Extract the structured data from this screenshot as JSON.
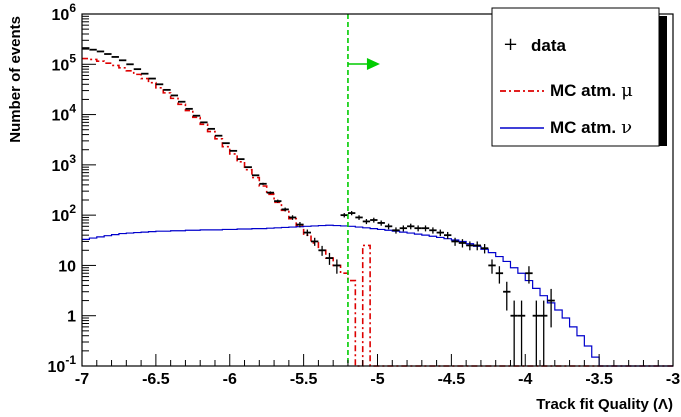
{
  "chart_data": {
    "type": "line",
    "xlabel": "Track fit Quality (Λ)",
    "ylabel": "Number of events",
    "xlim": [
      -7,
      -3
    ],
    "ylim": [
      0.1,
      1000000
    ],
    "y_scale": "log",
    "grid": false,
    "legend_position": "top-right",
    "x_ticks": [
      {
        "value": -7,
        "label": "-7"
      },
      {
        "value": -6.5,
        "label": "-6.5"
      },
      {
        "value": -6,
        "label": "-6"
      },
      {
        "value": -5.5,
        "label": "-5.5"
      },
      {
        "value": -5,
        "label": "-5"
      },
      {
        "value": -4.5,
        "label": "-4.5"
      },
      {
        "value": -4,
        "label": "-4"
      },
      {
        "value": -3.5,
        "label": "-3.5"
      },
      {
        "value": -3,
        "label": "-3"
      }
    ],
    "y_ticks": [
      {
        "value": 0.1,
        "base": "10",
        "exp": "-1"
      },
      {
        "value": 1,
        "label": "1"
      },
      {
        "value": 10,
        "label": "10"
      },
      {
        "value": 100,
        "base": "10",
        "exp": "2"
      },
      {
        "value": 1000,
        "base": "10",
        "exp": "3"
      },
      {
        "value": 10000,
        "base": "10",
        "exp": "4"
      },
      {
        "value": 100000,
        "base": "10",
        "exp": "5"
      },
      {
        "value": 1000000,
        "base": "10",
        "exp": "6"
      }
    ],
    "cut_line": {
      "x": -5.2,
      "color": "#00cc00",
      "arrow_direction": "right"
    },
    "legend": [
      {
        "symbol": "+",
        "label": "data"
      },
      {
        "label": "MC atm.",
        "greek": "μ"
      },
      {
        "label": "MC atm.",
        "greek": "ν"
      }
    ],
    "colors": {
      "data": "#000000",
      "mc_mu": "#dd0000",
      "mc_nu": "#0000cc",
      "cut": "#00cc00"
    },
    "bin_width": 0.05,
    "series": [
      {
        "id": "data",
        "style": "points-with-errors",
        "x": [
          -6.975,
          -6.925,
          -6.875,
          -6.825,
          -6.775,
          -6.725,
          -6.675,
          -6.625,
          -6.575,
          -6.525,
          -6.475,
          -6.425,
          -6.375,
          -6.325,
          -6.275,
          -6.225,
          -6.175,
          -6.125,
          -6.075,
          -6.025,
          -5.975,
          -5.925,
          -5.875,
          -5.825,
          -5.775,
          -5.725,
          -5.675,
          -5.625,
          -5.575,
          -5.525,
          -5.475,
          -5.425,
          -5.375,
          -5.325,
          -5.275,
          -5.225,
          -5.175,
          -5.125,
          -5.075,
          -5.025,
          -4.975,
          -4.925,
          -4.875,
          -4.825,
          -4.775,
          -4.725,
          -4.675,
          -4.625,
          -4.575,
          -4.525,
          -4.475,
          -4.425,
          -4.375,
          -4.325,
          -4.275,
          -4.225,
          -4.175,
          -4.125,
          -4.075,
          -4.025,
          -3.975,
          -3.925,
          -3.875,
          -3.825
        ],
        "y": [
          210000,
          195000,
          180000,
          160000,
          140000,
          120000,
          100000,
          80000,
          65000,
          52000,
          40000,
          31000,
          24000,
          18000,
          13000,
          9500,
          7000,
          5200,
          3800,
          2700,
          1900,
          1300,
          900,
          620,
          420,
          280,
          190,
          130,
          90,
          65,
          45,
          30,
          20,
          14,
          10,
          100,
          110,
          90,
          75,
          80,
          70,
          60,
          50,
          55,
          60,
          55,
          55,
          50,
          45,
          40,
          30,
          28,
          25,
          25,
          22,
          10,
          7,
          3,
          1,
          1,
          7,
          1,
          1,
          2
        ]
      },
      {
        "id": "mc_mu",
        "style": "dash-dot-step",
        "y": [
          130000,
          125000,
          115000,
          105000,
          95000,
          85000,
          74000,
          63000,
          52000,
          43000,
          34000,
          27000,
          21000,
          16000,
          12000,
          8800,
          6400,
          4600,
          3300,
          2300,
          1650,
          1150,
          800,
          560,
          380,
          260,
          180,
          125,
          85,
          60,
          40,
          28,
          20,
          14,
          10,
          7,
          5,
          0.1,
          25,
          0.1,
          0.1,
          0.1,
          0.1,
          0.1,
          0.1,
          0.1,
          0.1,
          0.1,
          0.1,
          0.1,
          0.1,
          0.1,
          0.1,
          0.1,
          0.1,
          0.1,
          0.1,
          0.1,
          0.1,
          0.1,
          0.1,
          0.1,
          0.1,
          0.1,
          0.1,
          0.1,
          0.1,
          0.1,
          0.1,
          0.1,
          0.1,
          0.1,
          0.1,
          0.1,
          0.1,
          0.1,
          0.1,
          0.1,
          0.1,
          0.1
        ]
      },
      {
        "id": "mc_nu",
        "style": "solid-step",
        "y": [
          33,
          35,
          37,
          39,
          41,
          43,
          44,
          45,
          46,
          47,
          48,
          48,
          49,
          49,
          50,
          50,
          51,
          51,
          51,
          52,
          52,
          53,
          53,
          54,
          54,
          55,
          56,
          57,
          58,
          59,
          60,
          61,
          62,
          63,
          62,
          61,
          60,
          58,
          56,
          54,
          52,
          50,
          48,
          46,
          44,
          42,
          40,
          38,
          36,
          34,
          32,
          30,
          27,
          24,
          21,
          18,
          15,
          12,
          9,
          7,
          5,
          3.5,
          2.5,
          1.8,
          1.3,
          0.9,
          0.6,
          0.4,
          0.25,
          0.15,
          0.1,
          0.1,
          0.1,
          0.1,
          0.1,
          0.1,
          0.1,
          0.1,
          0.1,
          0.1
        ]
      }
    ]
  }
}
